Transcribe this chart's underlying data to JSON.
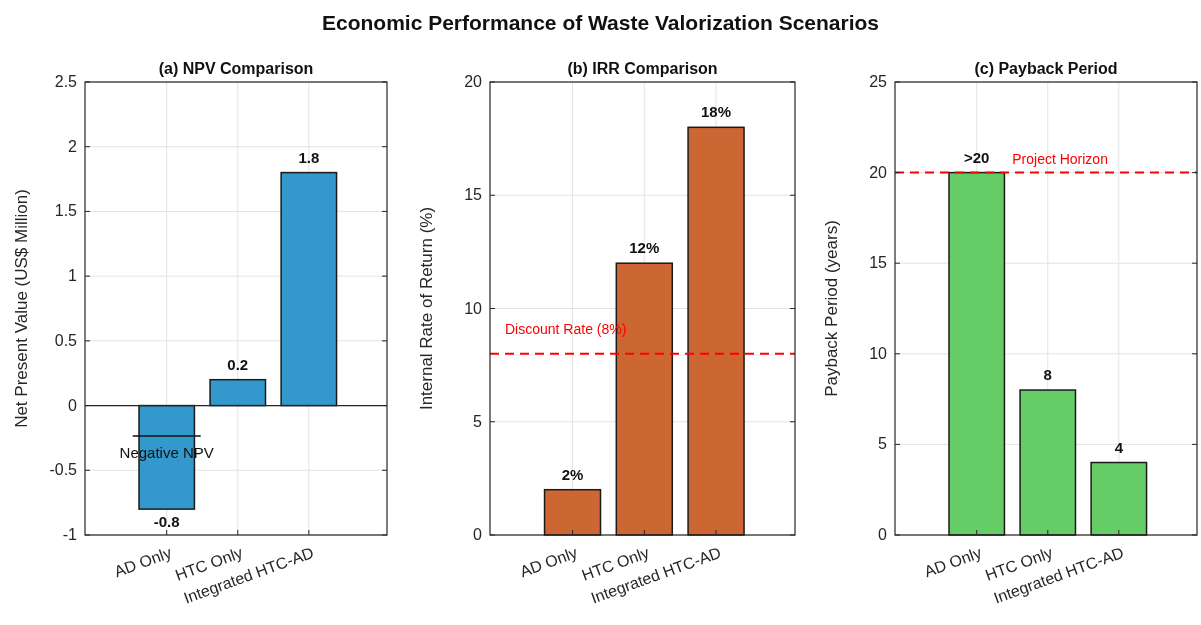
{
  "chart_data": [
    {
      "type": "bar",
      "title": "(a) NPV Comparison",
      "ylabel": "Net Present Value (US$ Million)",
      "categories": [
        "AD Only",
        "HTC Only",
        "Integrated HTC-AD"
      ],
      "values": [
        -0.8,
        0.2,
        1.8
      ],
      "color": "#3399cc",
      "ylim": [
        -1,
        2.5
      ],
      "yticks": [
        -1,
        -0.5,
        0,
        0.5,
        1,
        1.5,
        2,
        2.5
      ],
      "grid": true,
      "data_labels": true,
      "annotations": [
        "Economic Performance of Waste Valorization Scenarios",
        "Negative NPV"
      ]
    },
    {
      "type": "bar",
      "title": "(b) IRR Comparison",
      "ylabel": "Internal Rate of Return (%)",
      "categories": [
        "AD Only",
        "HTC Only",
        "Integrated HTC-AD"
      ],
      "values": [
        2,
        12,
        18
      ],
      "color": "#cc6633",
      "ylim": [
        0,
        20
      ],
      "yticks": [
        0,
        5,
        10,
        15,
        20
      ],
      "grid": true,
      "value_labels": [
        "2%",
        "12%",
        "18%"
      ],
      "ref_lines": [
        {
          "axis": "y",
          "value": 8,
          "label": "Discount Rate (8%)",
          "color": "#ff0000",
          "line_style": "dashed"
        }
      ]
    },
    {
      "type": "bar",
      "title": "(c) Payback Period",
      "ylabel": "Payback Period (years)",
      "categories": [
        "AD Only",
        "HTC Only",
        "Integrated HTC-AD"
      ],
      "values": [
        20,
        8,
        4
      ],
      "color": "#66cc66",
      "ylim": [
        0,
        25
      ],
      "yticks": [
        0,
        5,
        10,
        15,
        20,
        25
      ],
      "grid": true,
      "value_labels": [
        ">20",
        "8",
        "4"
      ],
      "ref_lines": [
        {
          "axis": "y",
          "value": 20,
          "label": "Project Horizon",
          "color": "#ff0000",
          "line_style": "dashed"
        }
      ]
    }
  ]
}
